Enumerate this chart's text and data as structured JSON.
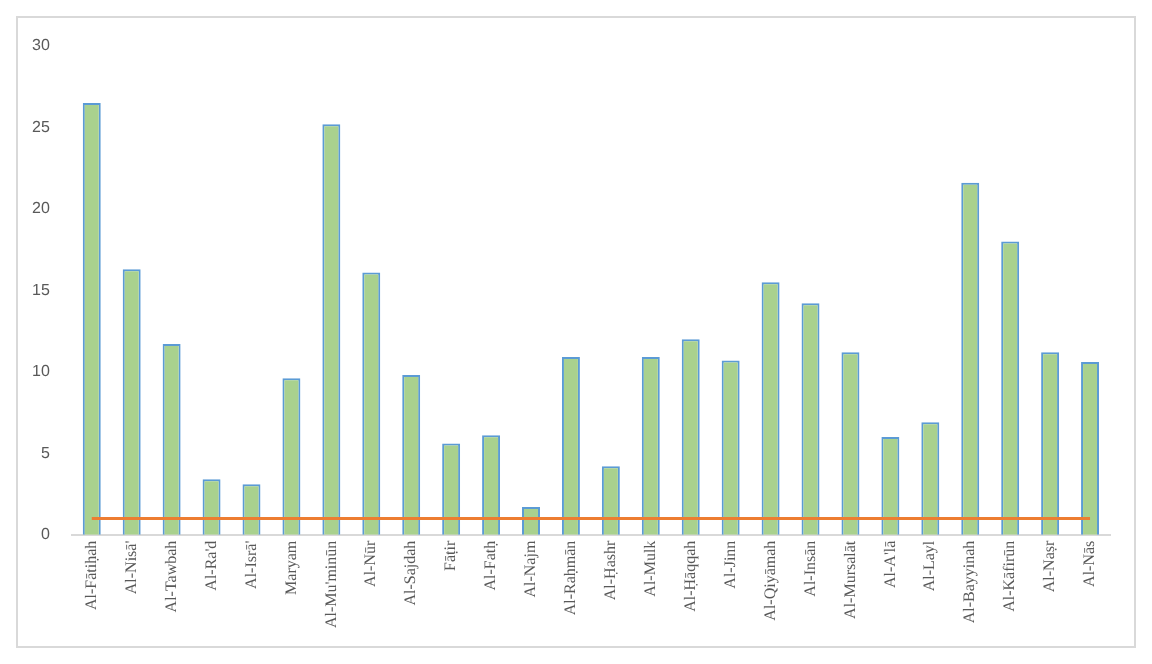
{
  "chart_data": {
    "type": "bar",
    "categories": [
      "Al-Fātiḥah",
      "Al-Nisā'",
      "Al-Tawbah",
      "Al-Ra'd",
      "Al-Isrā'",
      "Maryam",
      "Al-Mu'minūn",
      "Al-Nūr",
      "Al-Sajdah",
      "Fāṭir",
      "Al-Fatḥ",
      "Al-Najm",
      "Al-Raḥmān",
      "Al-Ḥashr",
      "Al-Mulk",
      "Al-Ḥāqqah",
      "Al-Jinn",
      "Al-Qiyāmah",
      "Al-Insān",
      "Al-Mursalāt",
      "Al-A'lā",
      "Al-Layl",
      "Al-Bayyinah",
      "Al-Kāfirūn",
      "Al-Naṣr",
      "Al-Nās"
    ],
    "series": [
      {
        "color": "#a9d18e",
        "values": [
          26.5,
          16.3,
          11.7,
          3.4,
          3.1,
          9.6,
          25.2,
          16.1,
          9.8,
          5.6,
          6.1,
          1.7,
          10.9,
          4.2,
          10.9,
          12.0,
          10.7,
          15.5,
          14.2,
          11.2,
          6.0,
          6.9,
          21.6,
          18.0,
          11.2,
          10.6
        ]
      },
      {
        "type": "line",
        "color": "#ed7d31",
        "values": [
          1,
          1,
          1,
          1,
          1,
          1,
          1,
          1,
          1,
          1,
          1,
          1,
          1,
          1,
          1,
          1,
          1,
          1,
          1,
          1,
          1,
          1,
          1,
          1,
          1,
          1
        ]
      }
    ],
    "ylim": [
      0,
      30
    ],
    "yticks": [
      0,
      5,
      10,
      15,
      20,
      25,
      30
    ],
    "grid": false,
    "legend": false,
    "marker": "none",
    "line_style": "solid"
  }
}
